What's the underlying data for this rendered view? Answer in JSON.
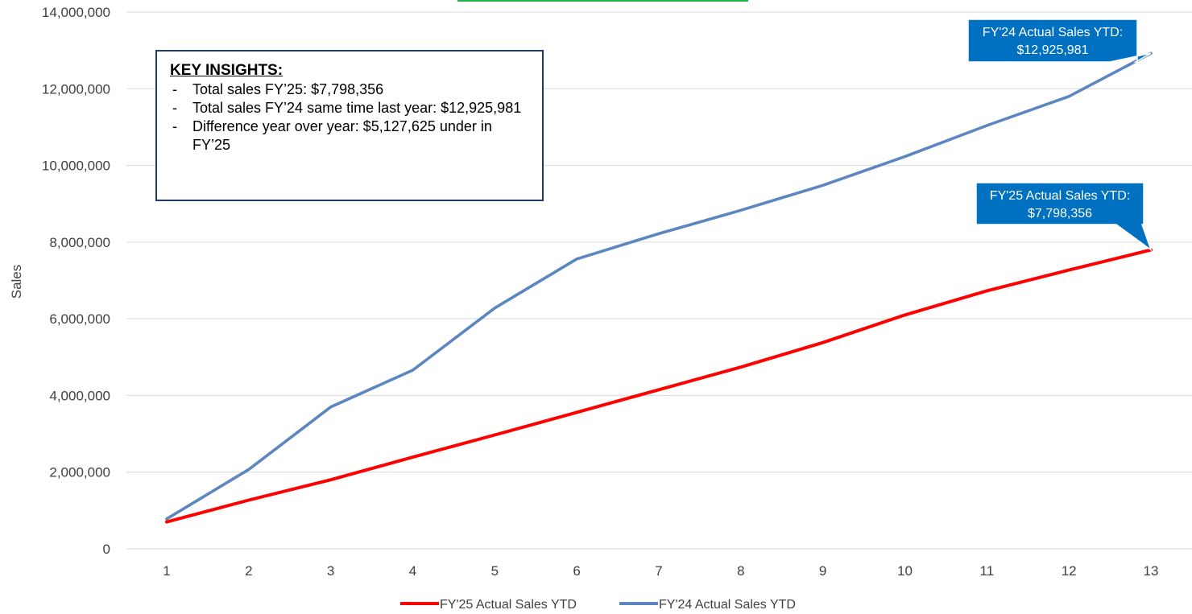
{
  "chart_data": {
    "type": "line",
    "x": [
      1,
      2,
      3,
      4,
      5,
      6,
      7,
      8,
      9,
      10,
      11,
      12,
      13
    ],
    "series": [
      {
        "name": "FY'25 Actual Sales YTD",
        "color": "#ff0000",
        "values": [
          700000,
          1270000,
          1800000,
          2390000,
          2970000,
          3560000,
          4150000,
          4740000,
          5380000,
          6100000,
          6730000,
          7270000,
          7798356
        ]
      },
      {
        "name": "FY'24 Actual Sales YTD",
        "color": "#5b86c0",
        "values": [
          780000,
          2070000,
          3700000,
          4660000,
          6280000,
          7560000,
          8220000,
          8830000,
          9480000,
          10230000,
          11040000,
          11800000,
          12925981
        ]
      }
    ],
    "ylabel": "Sales",
    "ylim": [
      0,
      14000000
    ],
    "yticks": [
      "0",
      "2,000,000",
      "4,000,000",
      "6,000,000",
      "8,000,000",
      "10,000,000",
      "12,000,000",
      "14,000,000"
    ],
    "grid": true,
    "legend_position": "bottom",
    "callouts": [
      {
        "line1": "FY'24 Actual Sales YTD:",
        "line2": "$12,925,981",
        "color": "#0070c0"
      },
      {
        "line1": "FY'25 Actual Sales YTD:",
        "line2": "$7,798,356",
        "color": "#0070c0"
      }
    ]
  },
  "insights": {
    "title": "KEY INSIGHTS:",
    "items": [
      "Total sales FY’25: $7,798,356",
      "Total sales FY’24 same time last year: $12,925,981",
      "Difference year over year: $5,127,625 under in FY’25"
    ]
  }
}
